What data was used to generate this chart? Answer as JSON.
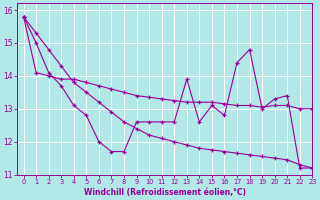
{
  "bg_color": "#b2e8e8",
  "grid_color": "#ffffff",
  "line_color": "#990099",
  "xlim": [
    -0.5,
    23
  ],
  "ylim": [
    11,
    16.2
  ],
  "yticks": [
    11,
    12,
    13,
    14,
    15,
    16
  ],
  "xticks": [
    0,
    1,
    2,
    3,
    4,
    5,
    6,
    7,
    8,
    9,
    10,
    11,
    12,
    13,
    14,
    15,
    16,
    17,
    18,
    19,
    20,
    21,
    22,
    23
  ],
  "xlabel": "Windchill (Refroidissement éolien,°C)",
  "series": [
    [
      15.8,
      15.0,
      14.1,
      13.7,
      13.1,
      12.8,
      12.0,
      11.7,
      11.7,
      12.6,
      12.6,
      12.6,
      12.6,
      13.9,
      12.6,
      13.1,
      12.8,
      14.4,
      14.8,
      13.0,
      13.3,
      13.4,
      11.2,
      11.2
    ],
    [
      15.8,
      15.3,
      14.8,
      14.3,
      13.8,
      13.5,
      13.2,
      12.9,
      12.6,
      12.4,
      12.2,
      12.1,
      12.0,
      11.9,
      11.8,
      11.75,
      11.7,
      11.65,
      11.6,
      11.55,
      11.5,
      11.45,
      11.3,
      11.2
    ],
    [
      15.8,
      14.1,
      14.0,
      13.9,
      13.9,
      13.8,
      13.7,
      13.6,
      13.5,
      13.4,
      13.35,
      13.3,
      13.25,
      13.2,
      13.2,
      13.2,
      13.15,
      13.1,
      13.1,
      13.05,
      13.1,
      13.1,
      13.0,
      13.0
    ]
  ]
}
